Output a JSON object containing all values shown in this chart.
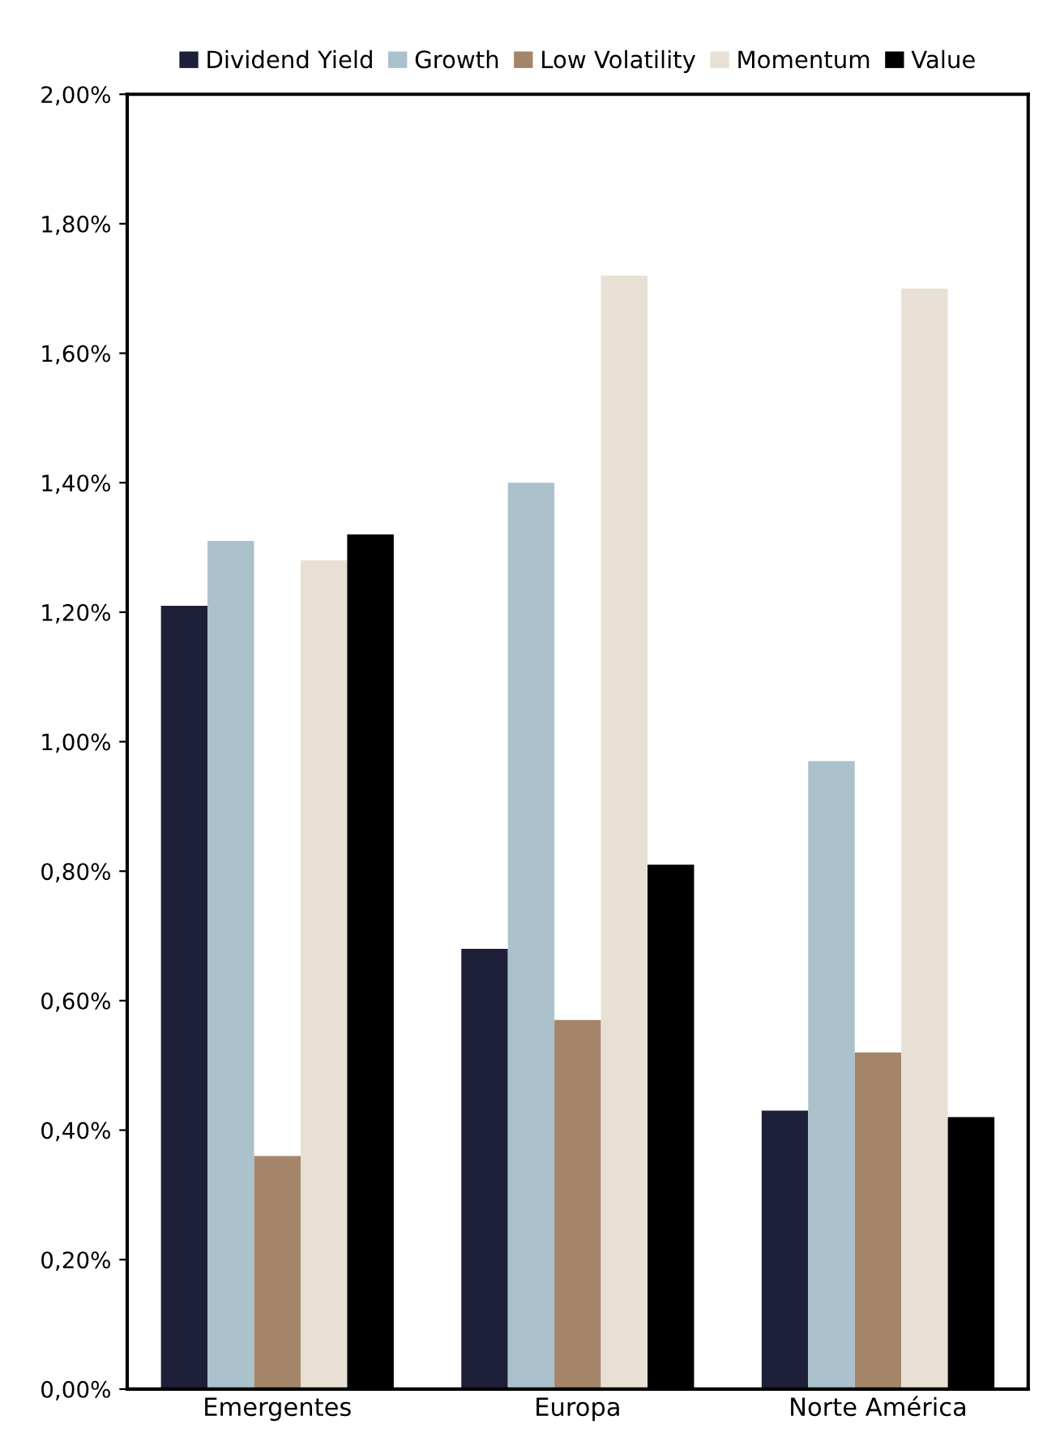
{
  "chart_data": {
    "type": "bar",
    "categories": [
      "Emergentes",
      "Europa",
      "Norte América"
    ],
    "series": [
      {
        "name": "Dividend Yield",
        "color": "#1d2038",
        "values": [
          1.21,
          0.68,
          0.43
        ]
      },
      {
        "name": "Growth",
        "color": "#abc2cc",
        "values": [
          1.31,
          1.4,
          0.97
        ]
      },
      {
        "name": "Low Volatility",
        "color": "#a5856a",
        "values": [
          0.36,
          0.57,
          0.52
        ]
      },
      {
        "name": "Momentum",
        "color": "#e8e0d4",
        "values": [
          1.28,
          1.72,
          1.7
        ]
      },
      {
        "name": "Value",
        "color": "#000000",
        "values": [
          1.32,
          0.81,
          0.42
        ]
      }
    ],
    "ylim": [
      0,
      2.0
    ],
    "yticks": [
      {
        "value": 0,
        "label": "0,00%"
      },
      {
        "value": 0.2,
        "label": "0,20%"
      },
      {
        "value": 0.4,
        "label": "0,40%"
      },
      {
        "value": 0.6,
        "label": "0,60%"
      },
      {
        "value": 0.8,
        "label": "0,80%"
      },
      {
        "value": 1.0,
        "label": "1,00%"
      },
      {
        "value": 1.2,
        "label": "1,20%"
      },
      {
        "value": 1.4,
        "label": "1,40%"
      },
      {
        "value": 1.6,
        "label": "1,60%"
      },
      {
        "value": 1.8,
        "label": "1,80%"
      },
      {
        "value": 2.0,
        "label": "2,00%"
      }
    ],
    "grid": false,
    "legend": "top"
  }
}
